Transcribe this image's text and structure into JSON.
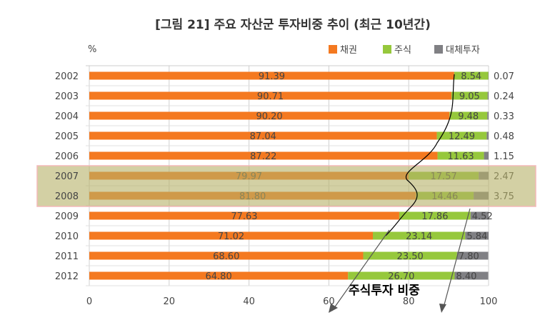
{
  "chart_data": {
    "type": "bar",
    "stacked": true,
    "orientation": "horizontal",
    "title": "[그림 21] 주요 자산군 투자비중 추이 (최근 10년간)",
    "unit_label": "%",
    "categories": [
      "2002",
      "2003",
      "2004",
      "2005",
      "2006",
      "2007",
      "2008",
      "2009",
      "2010",
      "2011",
      "2012"
    ],
    "series": [
      {
        "name": "채권",
        "color": "#f47920",
        "values": [
          91.39,
          90.71,
          90.2,
          87.04,
          87.22,
          79.97,
          81.8,
          77.63,
          71.02,
          68.6,
          64.8
        ]
      },
      {
        "name": "주식",
        "color": "#96c83c",
        "values": [
          8.54,
          9.05,
          9.48,
          12.49,
          11.63,
          17.57,
          14.46,
          17.86,
          23.14,
          23.5,
          26.7
        ]
      },
      {
        "name": "대체투자",
        "color": "#808084",
        "values": [
          0.07,
          0.24,
          0.33,
          0.48,
          1.15,
          2.47,
          3.75,
          4.52,
          5.84,
          7.8,
          8.4
        ]
      }
    ],
    "xlim": [
      0,
      100
    ],
    "xticks": [
      0,
      20,
      40,
      60,
      80,
      100
    ],
    "grid": true,
    "legend": "top-right",
    "highlight_years": [
      "2007",
      "2008"
    ],
    "annotation": "주식투자 비중"
  }
}
